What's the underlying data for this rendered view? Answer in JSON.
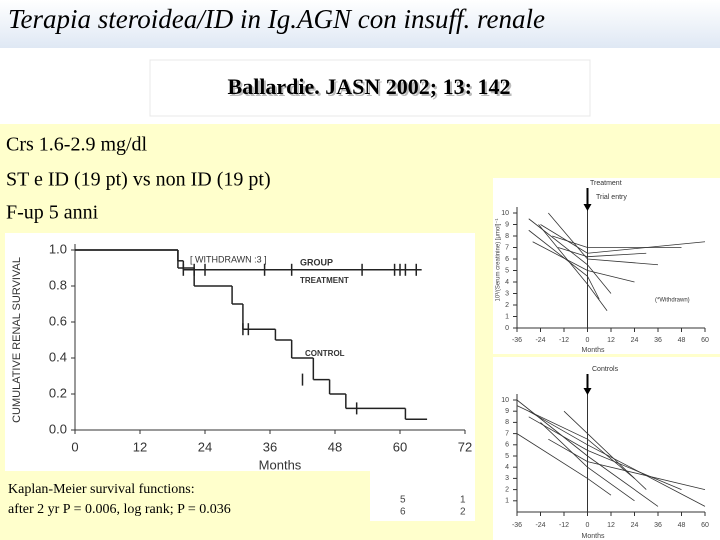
{
  "title": "Terapia steroidea/ID in Ig.AGN con insuff. renale",
  "subtitle": "Ballardie. JASN 2002; 13: 142",
  "bullets": [
    "Crs 1.6-2.9 mg/dl",
    "ST e ID (19 pt) vs non ID (19 pt)",
    "F-up 5 anni"
  ],
  "caption": [
    "Kaplan-Meier survival functions:",
    "after 2 yr P = 0.006, log rank; P = 0.036"
  ],
  "risk_table": [
    [
      "5",
      "1"
    ],
    [
      "6",
      "2"
    ]
  ],
  "chart_data": [
    {
      "type": "line",
      "step": true,
      "x_label": "Months",
      "y_label": "CUMULATIVE RENAL SURVIVAL",
      "annotations": [
        "[ WITHDRAWN :3 ]",
        "GROUP"
      ],
      "xlim": [
        0,
        72
      ],
      "xticks": [
        0,
        12,
        24,
        36,
        48,
        60,
        72
      ],
      "ylim": [
        0,
        1
      ],
      "yticks": [
        {
          "value": 0,
          "label": "0.0"
        },
        0.2,
        0.4,
        0.6,
        0.8,
        {
          "value": 1,
          "label": "1.0"
        }
      ],
      "series": [
        {
          "name": "TREATMENT",
          "color": "#222222",
          "x": [
            0,
            19,
            20,
            64
          ],
          "values": [
            1.0,
            0.94,
            0.89,
            0.89
          ],
          "censored_x": [
            20,
            22,
            24,
            35,
            40,
            53,
            59,
            60,
            61,
            63
          ],
          "censored_values": [
            0.89,
            0.89,
            0.89,
            0.89,
            0.89,
            0.89,
            0.89,
            0.89,
            0.89,
            0.89
          ]
        },
        {
          "name": "CONTROL",
          "color": "#222222",
          "x": [
            0,
            19,
            22,
            29,
            31,
            37,
            40,
            44,
            47,
            50,
            61,
            65
          ],
          "values": [
            1.0,
            0.9,
            0.8,
            0.7,
            0.56,
            0.5,
            0.4,
            0.28,
            0.2,
            0.12,
            0.06,
            0.06
          ],
          "censored_x": [
            31,
            32,
            42,
            52
          ],
          "censored_values": [
            0.56,
            0.56,
            0.28,
            0.12
          ]
        }
      ]
    },
    {
      "type": "line",
      "x_label": "Months",
      "y_label": "10³/(Serum creatinine) [μmol]⁻¹",
      "annotations": [
        "Treatment",
        "Trial entry",
        "(*Withdrawn)"
      ],
      "xlim": [
        -36,
        60
      ],
      "xticks": [
        -36,
        -24,
        -12,
        0,
        12,
        24,
        36,
        48,
        60
      ],
      "ylim": [
        0,
        10
      ],
      "yticks": [
        0,
        1,
        2,
        3,
        4,
        5,
        6,
        7,
        8,
        9,
        10
      ],
      "series": [
        {
          "color": "#333333",
          "x": [
            -30,
            0,
            12
          ],
          "values": [
            9.5,
            5.5,
            3
          ]
        },
        {
          "color": "#333333",
          "x": [
            -24,
            0,
            60
          ],
          "values": [
            9,
            6.5,
            7.5
          ]
        },
        {
          "color": "#333333",
          "x": [
            -30,
            0,
            6
          ],
          "values": [
            8.5,
            4.5,
            2.5
          ]
        },
        {
          "color": "#333333",
          "x": [
            -20,
            0,
            36
          ],
          "values": [
            10,
            6,
            5.5
          ]
        },
        {
          "color": "#333333",
          "x": [
            -28,
            0,
            24
          ],
          "values": [
            7.5,
            5,
            4
          ]
        },
        {
          "color": "#333333",
          "x": [
            -18,
            0,
            48
          ],
          "values": [
            8,
            7,
            7
          ]
        },
        {
          "color": "#333333",
          "x": [
            -25,
            0,
            10
          ],
          "values": [
            9,
            3.8,
            1.5
          ]
        },
        {
          "color": "#333333",
          "x": [
            -15,
            0,
            30
          ],
          "values": [
            7,
            6.2,
            6.5
          ]
        }
      ]
    },
    {
      "type": "line",
      "x_label": "Months",
      "annotations": [
        "Controls"
      ],
      "xlim": [
        -36,
        60
      ],
      "xticks": [
        -36,
        -24,
        -12,
        0,
        12,
        24,
        36,
        48,
        60
      ],
      "ylim": [
        0,
        10
      ],
      "yticks": [
        1,
        2,
        3,
        4,
        5,
        6,
        7,
        8,
        9,
        10
      ],
      "series": [
        {
          "color": "#333333",
          "x": [
            -36,
            0,
            36
          ],
          "values": [
            10,
            5,
            0.5
          ]
        },
        {
          "color": "#333333",
          "x": [
            -30,
            0,
            60
          ],
          "values": [
            9,
            6,
            0.5
          ]
        },
        {
          "color": "#333333",
          "x": [
            -24,
            0,
            24
          ],
          "values": [
            8,
            4,
            1
          ]
        },
        {
          "color": "#333333",
          "x": [
            -36,
            0,
            12
          ],
          "values": [
            7,
            3,
            1.5
          ]
        },
        {
          "color": "#333333",
          "x": [
            -30,
            0,
            48
          ],
          "values": [
            8.5,
            5.5,
            2
          ]
        },
        {
          "color": "#333333",
          "x": [
            -20,
            0,
            60
          ],
          "values": [
            6.5,
            4.5,
            2
          ]
        },
        {
          "color": "#333333",
          "x": [
            -12,
            0,
            30
          ],
          "values": [
            9,
            7,
            2
          ]
        },
        {
          "color": "#333333",
          "x": [
            -36,
            0,
            24
          ],
          "values": [
            9.5,
            6.5,
            3
          ]
        }
      ]
    }
  ]
}
